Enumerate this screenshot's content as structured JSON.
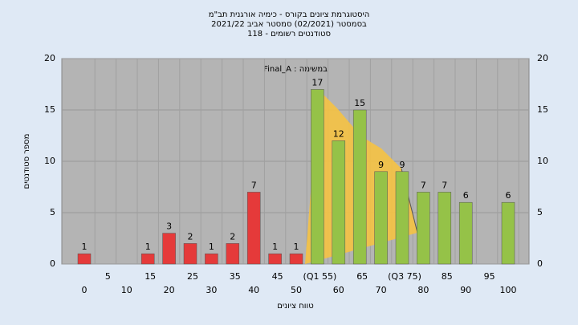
{
  "chart_data": {
    "type": "bar",
    "title": [
      "היסטוגרמת ציונים בקורס - כימיה אורגנית תב\"מ",
      "בסמסטר  (02/2021)  סמסטר אביב 2021/22",
      "סטודנטים רשומים - 118"
    ],
    "annotation": "Final_A : במשימה",
    "x_label": "טווח ציונים",
    "y_label": "מספר סטודנטים",
    "categories": [
      "0",
      "5",
      "10",
      "15",
      "20",
      "25",
      "30",
      "35",
      "40",
      "45",
      "50",
      "(Q1 55)",
      "60",
      "65",
      "70",
      "(Q3 75)",
      "80",
      "85",
      "90",
      "95",
      "100"
    ],
    "values": [
      1,
      0,
      0,
      1,
      3,
      2,
      1,
      2,
      7,
      1,
      1,
      17,
      12,
      15,
      9,
      9,
      7,
      7,
      6,
      0,
      6
    ],
    "value_labels": [
      "1",
      null,
      null,
      "1",
      "3",
      "2",
      "1",
      "2",
      "7",
      "1",
      "1",
      "17",
      "12",
      "15",
      "9",
      "9",
      "7",
      "7",
      "6",
      null,
      "6"
    ],
    "colors": [
      "#e53a3a",
      "#e53a3a",
      "#e53a3a",
      "#e53a3a",
      "#e53a3a",
      "#e53a3a",
      "#e53a3a",
      "#e53a3a",
      "#e53a3a",
      "#e53a3a",
      "#e53a3a",
      "#95c248",
      "#95c248",
      "#95c248",
      "#95c248",
      "#95c248",
      "#95c248",
      "#95c248",
      "#95c248",
      "#95c248",
      "#95c248"
    ],
    "ylim": [
      0,
      20
    ],
    "yticks": [
      0,
      5,
      10,
      15,
      20
    ],
    "grid": true
  }
}
